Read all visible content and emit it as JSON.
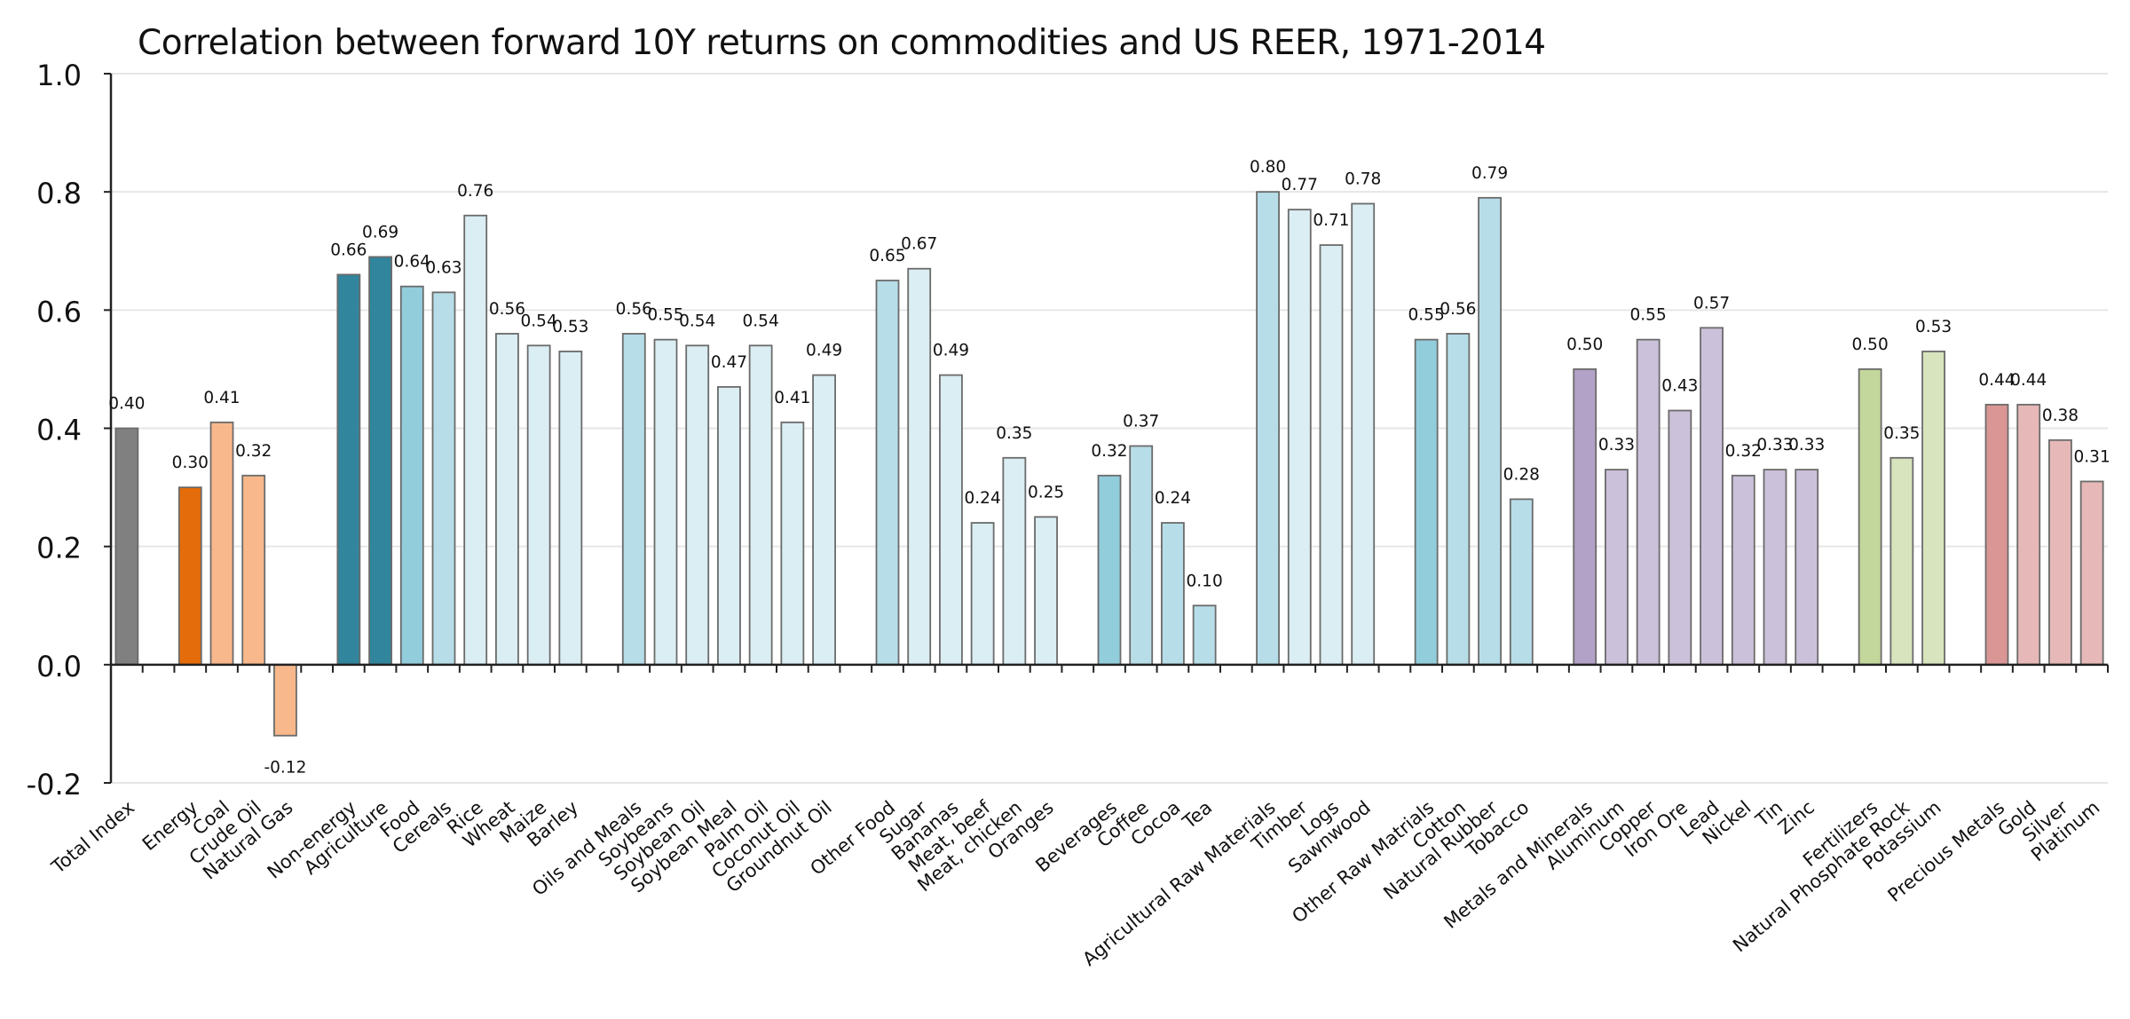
{
  "chart_data": {
    "type": "bar",
    "title": "Correlation between forward 10Y returns on commodities and US REER, 1971-2014",
    "xlabel": "",
    "ylabel": "",
    "ylim": [
      -0.2,
      1.0
    ],
    "yticks": [
      "-0.2",
      "0.0",
      "0.2",
      "0.4",
      "0.6",
      "0.8",
      "1.0"
    ],
    "grid": "horizontal",
    "legend": "none",
    "categories": [
      "Total Index",
      "",
      "Energy",
      "Coal",
      "Crude Oil",
      "Natural Gas",
      "",
      "Non-energy",
      "Agriculture",
      "Food",
      "Cereals",
      "Rice",
      "Wheat",
      "Maize",
      "Barley",
      "",
      "Oils and Meals",
      "Soybeans",
      "Soybean Oil",
      "Soybean Meal",
      "Palm Oil",
      "Coconut Oil",
      "Groundnut Oil",
      "",
      "Other Food",
      "Sugar",
      "Bananas",
      "Meat, beef",
      "Meat, chicken",
      "Oranges",
      "",
      "Beverages",
      "Coffee",
      "Cocoa",
      "Tea",
      "",
      "Agricultural Raw Materials",
      "Timber",
      "Logs",
      "Sawnwood",
      "",
      "Other Raw Matrials",
      "Cotton",
      "Natural Rubber",
      "Tobacco",
      "",
      "Metals and Minerals",
      "Aluminum",
      "Copper",
      "Iron Ore",
      "Lead",
      "Nickel",
      "Tin",
      "Zinc",
      "",
      "Fertilizers",
      "Natural Phosphate Rock",
      "Potassium",
      "",
      "Precious Metals",
      "Gold",
      "Silver",
      "Platinum"
    ],
    "values": [
      0.4,
      null,
      0.3,
      0.41,
      0.32,
      -0.12,
      null,
      0.66,
      0.69,
      0.64,
      0.63,
      0.76,
      0.56,
      0.54,
      0.53,
      null,
      0.56,
      0.55,
      0.54,
      0.47,
      0.54,
      0.41,
      0.49,
      null,
      0.65,
      0.67,
      0.49,
      0.24,
      0.35,
      0.25,
      null,
      0.32,
      0.37,
      0.24,
      0.1,
      null,
      0.8,
      0.77,
      0.71,
      0.78,
      null,
      0.55,
      0.56,
      0.79,
      0.28,
      null,
      0.5,
      0.33,
      0.55,
      0.43,
      0.57,
      0.32,
      0.33,
      0.33,
      null,
      0.5,
      0.35,
      0.53,
      null,
      0.44,
      0.44,
      0.38,
      0.31
    ],
    "data_labels": [
      "0.40",
      "",
      "0.30",
      "0.41",
      "0.32",
      "-0.12",
      "",
      "0.66",
      "0.69",
      "0.64",
      "0.63",
      "0.76",
      "0.56",
      "0.54",
      "0.53",
      "",
      "0.56",
      "0.55",
      "0.54",
      "0.47",
      "0.54",
      "0.41",
      "0.49",
      "",
      "0.65",
      "0.67",
      "0.49",
      "0.24",
      "0.35",
      "0.25",
      "",
      "0.32",
      "0.37",
      "0.24",
      "0.10",
      "",
      "0.80",
      "0.77",
      "0.71",
      "0.78",
      "",
      "0.55",
      "0.56",
      "0.79",
      "0.28",
      "",
      "0.50",
      "0.33",
      "0.55",
      "0.43",
      "0.57",
      "0.32",
      "0.33",
      "0.33",
      "",
      "0.50",
      "0.35",
      "0.53",
      "",
      "0.44",
      "0.44",
      "0.38",
      "0.31"
    ],
    "colors": [
      "#808080",
      "",
      "#E46C0A",
      "#F8B88B",
      "#F8B88B",
      "#F8B88B",
      "",
      "#31859C",
      "#31859C",
      "#92CDDC",
      "#B7DEE8",
      "#DAEEF3",
      "#DAEEF3",
      "#DAEEF3",
      "#DAEEF3",
      "",
      "#B7DEE8",
      "#DAEEF3",
      "#DAEEF3",
      "#DAEEF3",
      "#DAEEF3",
      "#DAEEF3",
      "#DAEEF3",
      "",
      "#B7DEE8",
      "#DAEEF3",
      "#DAEEF3",
      "#DAEEF3",
      "#DAEEF3",
      "#DAEEF3",
      "",
      "#92CDDC",
      "#B7DEE8",
      "#B7DEE8",
      "#B7DEE8",
      "",
      "#B7DEE8",
      "#DAEEF3",
      "#DAEEF3",
      "#DAEEF3",
      "",
      "#92CDDC",
      "#B7DEE8",
      "#B7DEE8",
      "#B7DEE8",
      "",
      "#B3A2C7",
      "#CCC1DA",
      "#CCC1DA",
      "#CCC1DA",
      "#CCC1DA",
      "#CCC1DA",
      "#CCC1DA",
      "#CCC1DA",
      "",
      "#C3D69B",
      "#D7E4BD",
      "#D7E4BD",
      "",
      "#D99694",
      "#E6B9B8",
      "#E6B9B8",
      "#E6B9B8"
    ]
  }
}
